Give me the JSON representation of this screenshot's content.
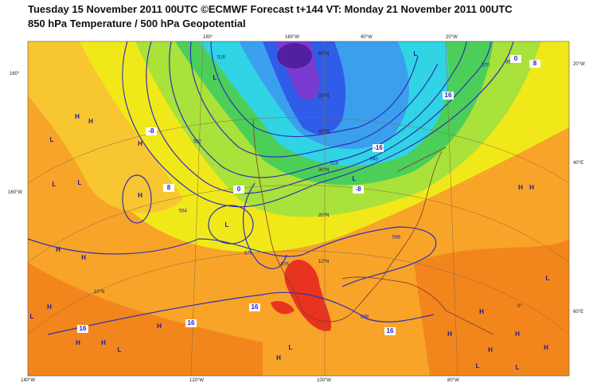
{
  "header": {
    "title": "Tuesday 15 November 2011 00UTC ©ECMWF Forecast t+144 VT: Monday 21 November 2011 00UTC",
    "subtitle": "850 hPa Temperature / 500 hPa Geopotential"
  },
  "graticule_labels": [
    "180°",
    "160°W",
    "40°W",
    "20°W",
    "160°",
    "160°W",
    "20°W",
    "40°E",
    "60°E",
    "140°W",
    "120°W",
    "100°W",
    "80°W",
    "60°N",
    "50°N",
    "40°N",
    "30°N",
    "20°N",
    "10°N",
    "10°N",
    "0°"
  ],
  "pressure_centers": [
    "L",
    "L",
    "L",
    "L",
    "L",
    "L",
    "L",
    "L",
    "L",
    "H",
    "H",
    "H",
    "H",
    "H",
    "H",
    "H",
    "H",
    "H",
    "H",
    "H",
    "H",
    "H",
    "H",
    "H",
    "H",
    "H",
    "H",
    "L",
    "L",
    "L",
    "L"
  ],
  "contour_labels": [
    "516",
    "528",
    "540",
    "552",
    "564",
    "576",
    "588",
    "576",
    "588",
    "570",
    "564"
  ],
  "temperature_labels": [
    "-8",
    "0",
    "8",
    "16",
    "16",
    "16",
    "16",
    "-16",
    "-8",
    "0",
    "8",
    "16"
  ]
}
